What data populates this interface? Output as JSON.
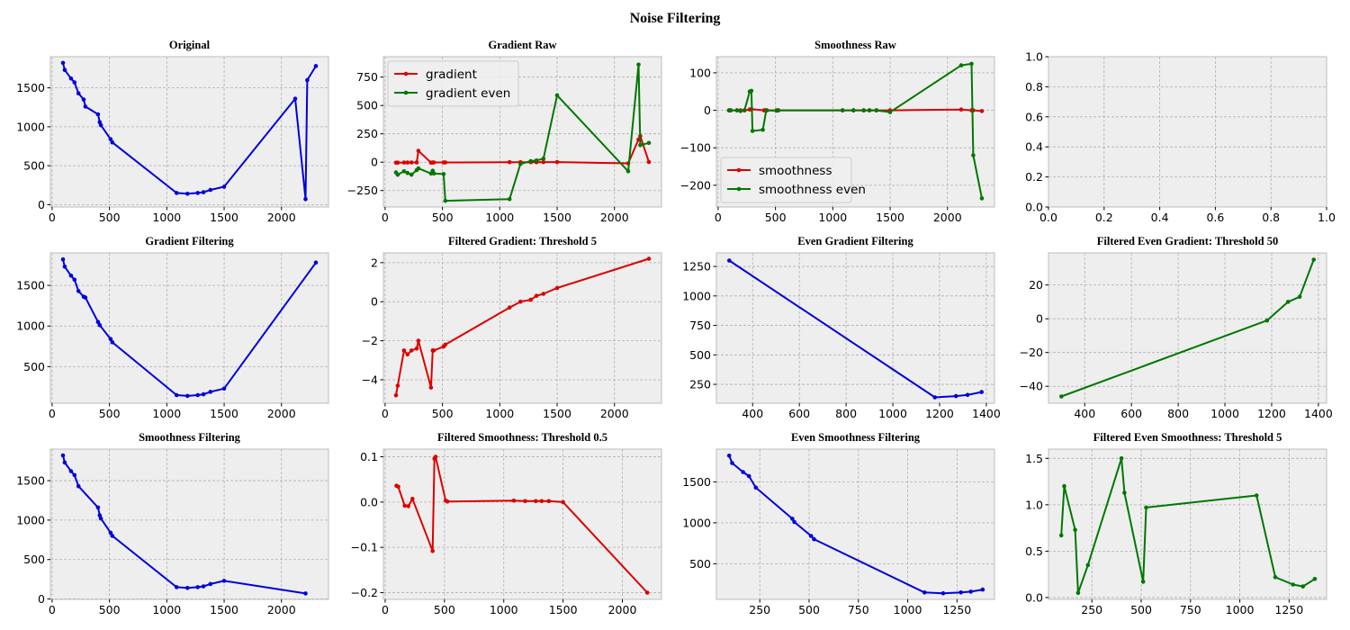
{
  "figure": {
    "title": "Noise Filtering"
  },
  "colors": {
    "blue": "#0000dd",
    "red": "#dd0000",
    "green": "#007700",
    "axes_bg": "#eeeeee",
    "grid": "#b0b0b0"
  },
  "chart_data": [
    {
      "id": "original",
      "type": "line",
      "title": "Original",
      "xlim": [
        -15,
        2410
      ],
      "ylim": [
        -30,
        1900
      ],
      "xticks": [
        0,
        500,
        1000,
        1500,
        2000
      ],
      "yticks": [
        0,
        500,
        1000,
        1500
      ],
      "series": [
        {
          "color": "blue",
          "x": [
            95,
            110,
            165,
            195,
            230,
            275,
            290,
            400,
            415,
            425,
            510,
            525,
            1085,
            1180,
            1270,
            1320,
            1380,
            1500,
            2120,
            2210,
            2225,
            2300
          ],
          "y": [
            1820,
            1730,
            1620,
            1570,
            1430,
            1350,
            1260,
            1160,
            1060,
            1020,
            840,
            800,
            150,
            140,
            150,
            160,
            190,
            230,
            1360,
            70,
            1600,
            1780
          ]
        }
      ]
    },
    {
      "id": "gradient-raw",
      "type": "line",
      "title": "Gradient Raw",
      "xlim": [
        -15,
        2410
      ],
      "ylim": [
        -395,
        930
      ],
      "xticks": [
        0,
        500,
        1000,
        1500,
        2000
      ],
      "yticks": [
        -250,
        0,
        250,
        500,
        750
      ],
      "legend": "upper-left",
      "series": [
        {
          "name": "gradient",
          "color": "red",
          "x": [
            95,
            110,
            165,
            195,
            230,
            275,
            290,
            400,
            415,
            425,
            510,
            525,
            1085,
            1180,
            1270,
            1320,
            1380,
            1500,
            2120,
            2210,
            2225,
            2300
          ],
          "y": [
            -5,
            -4,
            -3,
            -3,
            -2,
            -2,
            100,
            -4,
            -3,
            -2,
            -2,
            -2,
            0,
            0,
            0,
            0,
            1,
            1,
            -10,
            200,
            230,
            2
          ]
        },
        {
          "name": "gradient even",
          "color": "green",
          "x": [
            95,
            110,
            165,
            195,
            230,
            275,
            290,
            400,
            415,
            425,
            510,
            525,
            1085,
            1180,
            1270,
            1320,
            1380,
            1500,
            2120,
            2210,
            2225,
            2300
          ],
          "y": [
            -90,
            -110,
            -80,
            -95,
            -110,
            -70,
            -55,
            -100,
            -75,
            -100,
            -105,
            -340,
            -325,
            -15,
            10,
            15,
            30,
            590,
            -80,
            860,
            150,
            170
          ]
        }
      ]
    },
    {
      "id": "smoothness-raw",
      "type": "line",
      "title": "Smoothness Raw",
      "xlim": [
        -15,
        2410
      ],
      "ylim": [
        -258,
        143
      ],
      "xticks": [
        0,
        500,
        1000,
        1500,
        2000
      ],
      "yticks": [
        -200,
        -100,
        0,
        100
      ],
      "legend": "lower-left",
      "series": [
        {
          "name": "smoothness",
          "color": "red",
          "x": [
            95,
            110,
            165,
            195,
            230,
            275,
            290,
            400,
            415,
            425,
            510,
            525,
            1085,
            1180,
            1270,
            1320,
            1380,
            1500,
            2120,
            2210,
            2225,
            2300
          ],
          "y": [
            0,
            0,
            0,
            0,
            0,
            2,
            3,
            0,
            0,
            0,
            0,
            0,
            0,
            0,
            0,
            0,
            0,
            0,
            2,
            0,
            0,
            -2
          ]
        },
        {
          "name": "smoothness even",
          "color": "green",
          "x": [
            95,
            110,
            165,
            195,
            230,
            275,
            290,
            300,
            390,
            420,
            510,
            525,
            1085,
            1180,
            1270,
            1320,
            1380,
            1500,
            2120,
            2210,
            2225,
            2300
          ],
          "y": [
            0,
            0,
            0,
            -2,
            0,
            50,
            52,
            -55,
            -52,
            0,
            -1,
            0,
            0,
            0,
            0,
            0,
            0,
            -5,
            120,
            124,
            -120,
            -235
          ]
        }
      ]
    },
    {
      "id": "empty",
      "type": "line",
      "title": "",
      "xlim": [
        0,
        1
      ],
      "ylim": [
        0,
        1
      ],
      "xticks": [
        0.0,
        0.2,
        0.4,
        0.6,
        0.8,
        1.0
      ],
      "yticks": [
        0.0,
        0.2,
        0.4,
        0.6,
        0.8,
        1.0
      ],
      "xtick_labels": [
        "0.0",
        "0.2",
        "0.4",
        "0.6",
        "0.8",
        "1.0"
      ],
      "ytick_labels": [
        "0.0",
        "0.2",
        "0.4",
        "0.6",
        "0.8",
        "1.0"
      ],
      "no_pad": true,
      "series": []
    },
    {
      "id": "gradient-filtering",
      "type": "line",
      "title": "Gradient Filtering",
      "xlim": [
        -15,
        2410
      ],
      "ylim": [
        50,
        1900
      ],
      "xticks": [
        0,
        500,
        1000,
        1500,
        2000
      ],
      "yticks": [
        500,
        1000,
        1500
      ],
      "series": [
        {
          "color": "blue",
          "x": [
            95,
            110,
            165,
            195,
            230,
            275,
            290,
            400,
            415,
            510,
            525,
            1085,
            1180,
            1270,
            1320,
            1380,
            1500,
            2300
          ],
          "y": [
            1820,
            1730,
            1620,
            1570,
            1430,
            1360,
            1350,
            1050,
            1010,
            840,
            800,
            150,
            140,
            150,
            160,
            190,
            230,
            1780
          ]
        }
      ]
    },
    {
      "id": "filtered-gradient",
      "type": "line",
      "title": "Filtered Gradient: Threshold 5",
      "xlim": [
        -15,
        2410
      ],
      "ylim": [
        -5.2,
        2.5
      ],
      "xticks": [
        0,
        500,
        1000,
        1500,
        2000
      ],
      "yticks": [
        -4,
        -2,
        0,
        2
      ],
      "series": [
        {
          "color": "red",
          "x": [
            95,
            110,
            165,
            195,
            230,
            275,
            290,
            400,
            415,
            425,
            510,
            525,
            1085,
            1180,
            1270,
            1320,
            1380,
            1500,
            2300
          ],
          "y": [
            -4.8,
            -4.3,
            -2.5,
            -2.7,
            -2.5,
            -2.4,
            -2.0,
            -4.4,
            -2.5,
            -2.5,
            -2.3,
            -2.2,
            -0.3,
            0.0,
            0.1,
            0.3,
            0.4,
            0.7,
            2.2
          ]
        }
      ]
    },
    {
      "id": "even-gradient-filtering",
      "type": "line",
      "title": "Even Gradient Filtering",
      "xlim": [
        245,
        1435
      ],
      "ylim": [
        90,
        1365
      ],
      "xticks": [
        400,
        600,
        800,
        1000,
        1200,
        1400
      ],
      "yticks": [
        250,
        500,
        750,
        1000,
        1250
      ],
      "series": [
        {
          "color": "blue",
          "x": [
            300,
            1180,
            1270,
            1320,
            1380
          ],
          "y": [
            1300,
            140,
            150,
            160,
            185
          ]
        }
      ]
    },
    {
      "id": "filtered-even-gradient",
      "type": "line",
      "title": "Filtered Even Gradient: Threshold 50",
      "xlim": [
        245,
        1435
      ],
      "ylim": [
        -50,
        39
      ],
      "xticks": [
        400,
        600,
        800,
        1000,
        1200,
        1400
      ],
      "yticks": [
        -40,
        -20,
        0,
        20
      ],
      "series": [
        {
          "color": "green",
          "x": [
            300,
            1180,
            1270,
            1320,
            1380
          ],
          "y": [
            -46,
            -1,
            10,
            13,
            35
          ]
        }
      ]
    },
    {
      "id": "smoothness-filtering",
      "type": "line",
      "title": "Smoothness Filtering",
      "xlim": [
        -15,
        2410
      ],
      "ylim": [
        -5,
        1900
      ],
      "xticks": [
        0,
        500,
        1000,
        1500,
        2000
      ],
      "yticks": [
        0,
        500,
        1000,
        1500
      ],
      "series": [
        {
          "color": "blue",
          "x": [
            95,
            110,
            165,
            195,
            230,
            400,
            415,
            425,
            510,
            525,
            1085,
            1180,
            1270,
            1320,
            1380,
            1500,
            2210
          ],
          "y": [
            1820,
            1730,
            1620,
            1570,
            1430,
            1160,
            1060,
            1020,
            840,
            800,
            150,
            140,
            150,
            160,
            190,
            230,
            70
          ]
        }
      ]
    },
    {
      "id": "filtered-smoothness",
      "type": "line",
      "title": "Filtered Smoothness: Threshold 0.5",
      "xlim": [
        -15,
        2330
      ],
      "ylim": [
        -0.215,
        0.117
      ],
      "xticks": [
        0,
        500,
        1000,
        1500,
        2000
      ],
      "yticks": [
        -0.2,
        -0.1,
        0.0,
        0.1
      ],
      "ytick_labels": [
        "−0.2",
        "−0.1",
        "0.0",
        "0.1"
      ],
      "series": [
        {
          "color": "red",
          "x": [
            95,
            110,
            165,
            195,
            230,
            400,
            415,
            425,
            510,
            525,
            1085,
            1180,
            1270,
            1320,
            1380,
            1500,
            2210
          ],
          "y": [
            0.036,
            0.034,
            -0.008,
            -0.009,
            0.007,
            -0.108,
            0.096,
            0.1,
            0.003,
            0.001,
            0.003,
            0.002,
            0.002,
            0.002,
            0.002,
            0.0,
            -0.2
          ]
        }
      ]
    },
    {
      "id": "even-smoothness-filtering",
      "type": "line",
      "title": "Even Smoothness Filtering",
      "xlim": [
        30,
        1440
      ],
      "ylim": [
        65,
        1900
      ],
      "xticks": [
        250,
        500,
        750,
        1000,
        1250
      ],
      "yticks": [
        500,
        1000,
        1500
      ],
      "series": [
        {
          "color": "blue",
          "x": [
            95,
            110,
            165,
            195,
            230,
            415,
            425,
            510,
            525,
            1085,
            1180,
            1270,
            1320,
            1380
          ],
          "y": [
            1820,
            1730,
            1620,
            1570,
            1430,
            1050,
            1010,
            840,
            800,
            150,
            140,
            150,
            160,
            185
          ]
        }
      ]
    },
    {
      "id": "filtered-even-smoothness",
      "type": "line",
      "title": "Filtered Even Smoothness: Threshold 5",
      "xlim": [
        30,
        1440
      ],
      "ylim": [
        -0.02,
        1.6
      ],
      "xticks": [
        250,
        500,
        750,
        1000,
        1250
      ],
      "yticks": [
        0.0,
        0.5,
        1.0,
        1.5
      ],
      "ytick_labels": [
        "0.0",
        "0.5",
        "1.0",
        "1.5"
      ],
      "series": [
        {
          "color": "green",
          "x": [
            95,
            110,
            165,
            180,
            230,
            400,
            415,
            510,
            525,
            1085,
            1180,
            1270,
            1320,
            1380
          ],
          "y": [
            0.67,
            1.2,
            0.73,
            0.05,
            0.35,
            1.5,
            1.13,
            0.17,
            0.97,
            1.1,
            0.22,
            0.14,
            0.12,
            0.2
          ]
        }
      ]
    }
  ]
}
